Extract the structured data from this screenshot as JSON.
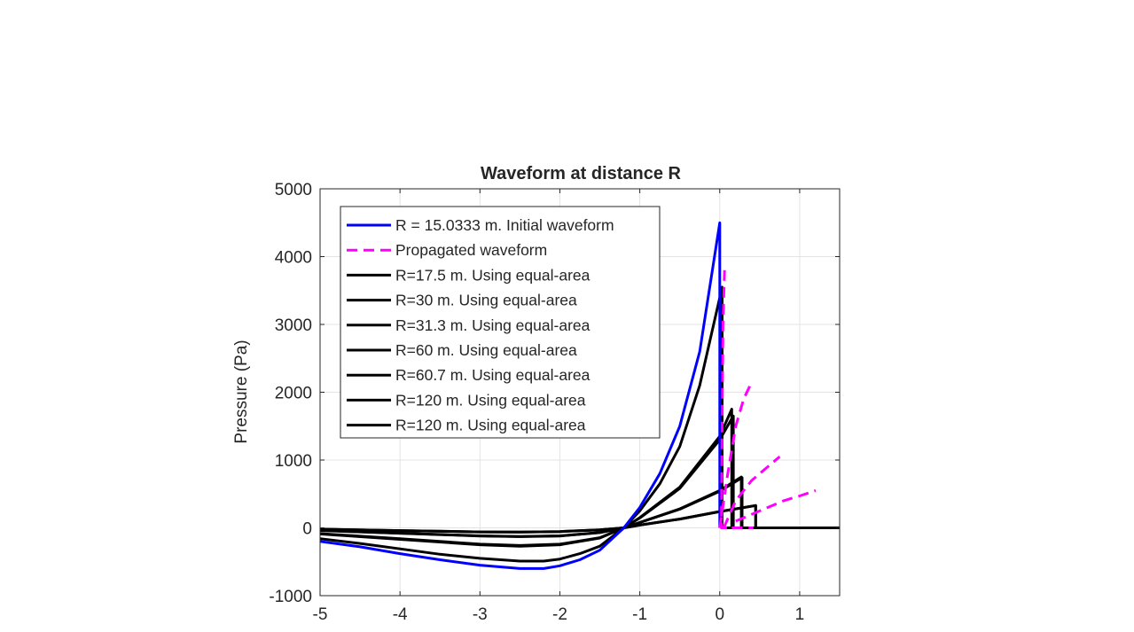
{
  "chart_data": {
    "type": "line",
    "title": "Waveform at distance R",
    "xlabel": "",
    "ylabel": "Pressure (Pa)",
    "xlim": [
      -5,
      1.5
    ],
    "ylim": [
      -1000,
      5000
    ],
    "xticks": [
      "-5",
      "-4",
      "-3",
      "-2",
      "-1",
      "0",
      "1"
    ],
    "xtick_values": [
      -5,
      -4,
      -3,
      -2,
      -1,
      0,
      1
    ],
    "yticks": [
      "-1000",
      "0",
      "1000",
      "2000",
      "3000",
      "4000",
      "5000"
    ],
    "ytick_values": [
      -1000,
      0,
      1000,
      2000,
      3000,
      4000,
      5000
    ],
    "grid": true,
    "legend_position": "top-left",
    "series": [
      {
        "name": "R = 15.0333 m. Initial waveform",
        "color": "#0000ff",
        "dash": false,
        "points": [
          [
            -5,
            -200
          ],
          [
            -4.5,
            -280
          ],
          [
            -4,
            -380
          ],
          [
            -3.5,
            -470
          ],
          [
            -3,
            -550
          ],
          [
            -2.5,
            -600
          ],
          [
            -2.2,
            -600
          ],
          [
            -2,
            -560
          ],
          [
            -1.75,
            -470
          ],
          [
            -1.5,
            -330
          ],
          [
            -1.2,
            0
          ],
          [
            -1,
            300
          ],
          [
            -0.75,
            800
          ],
          [
            -0.5,
            1500
          ],
          [
            -0.25,
            2600
          ],
          [
            0,
            4500
          ],
          [
            0,
            0
          ]
        ]
      },
      {
        "name": "Propagated waveform",
        "color": "#ff00ff",
        "dash": true,
        "segments": [
          [
            [
              0.06,
              3800
            ],
            [
              0.04,
              3000
            ],
            [
              0.03,
              1500
            ],
            [
              0.02,
              0
            ],
            [
              0.1,
              0
            ]
          ],
          [
            [
              0.0,
              0
            ],
            [
              0.1,
              800
            ],
            [
              0.2,
              1500
            ],
            [
              0.3,
              1900
            ],
            [
              0.4,
              2150
            ]
          ],
          [
            [
              0.05,
              0
            ],
            [
              0.2,
              400
            ],
            [
              0.4,
              700
            ],
            [
              0.6,
              900
            ],
            [
              0.75,
              1050
            ]
          ],
          [
            [
              0.15,
              0
            ],
            [
              0.42,
              0
            ]
          ],
          [
            [
              0.2,
              100
            ],
            [
              0.5,
              250
            ],
            [
              0.8,
              400
            ],
            [
              1.0,
              470
            ],
            [
              1.2,
              550
            ]
          ]
        ]
      },
      {
        "name": "R=17.5 m. Using equal-area",
        "color": "#000000",
        "dash": false,
        "points": [
          [
            -5,
            -160
          ],
          [
            -4.5,
            -230
          ],
          [
            -4,
            -310
          ],
          [
            -3.5,
            -390
          ],
          [
            -3,
            -450
          ],
          [
            -2.5,
            -490
          ],
          [
            -2.2,
            -490
          ],
          [
            -2,
            -460
          ],
          [
            -1.75,
            -380
          ],
          [
            -1.5,
            -270
          ],
          [
            -1.2,
            0
          ],
          [
            -1,
            250
          ],
          [
            -0.75,
            650
          ],
          [
            -0.5,
            1200
          ],
          [
            -0.25,
            2100
          ],
          [
            0.03,
            3550
          ],
          [
            0.03,
            0
          ],
          [
            1.5,
            0
          ]
        ]
      },
      {
        "name": "R=30 m. Using equal-area",
        "color": "#000000",
        "dash": false,
        "points": [
          [
            -5,
            -90
          ],
          [
            -4,
            -170
          ],
          [
            -3,
            -250
          ],
          [
            -2.5,
            -270
          ],
          [
            -2,
            -250
          ],
          [
            -1.5,
            -150
          ],
          [
            -1.2,
            0
          ],
          [
            -1,
            150
          ],
          [
            -0.5,
            600
          ],
          [
            0,
            1350
          ],
          [
            0.15,
            1750
          ],
          [
            0.15,
            0
          ],
          [
            1.5,
            0
          ]
        ]
      },
      {
        "name": "R=31.3 m. Using equal-area",
        "color": "#000000",
        "dash": false,
        "points": [
          [
            -5,
            -85
          ],
          [
            -4,
            -160
          ],
          [
            -3,
            -240
          ],
          [
            -2.5,
            -260
          ],
          [
            -2,
            -240
          ],
          [
            -1.5,
            -145
          ],
          [
            -1.2,
            0
          ],
          [
            -1,
            145
          ],
          [
            -0.5,
            580
          ],
          [
            0,
            1300
          ],
          [
            0.17,
            1650
          ],
          [
            0.17,
            0
          ],
          [
            1.5,
            0
          ]
        ]
      },
      {
        "name": "R=60 m. Using equal-area",
        "color": "#000000",
        "dash": false,
        "points": [
          [
            -5,
            -40
          ],
          [
            -4,
            -80
          ],
          [
            -3,
            -120
          ],
          [
            -2.5,
            -130
          ],
          [
            -2,
            -120
          ],
          [
            -1.5,
            -70
          ],
          [
            -1.2,
            0
          ],
          [
            -1,
            80
          ],
          [
            -0.5,
            280
          ],
          [
            0,
            550
          ],
          [
            0.27,
            750
          ],
          [
            0.27,
            0
          ],
          [
            1.5,
            0
          ]
        ]
      },
      {
        "name": "R=60.7 m. Using equal-area",
        "color": "#000000",
        "dash": false,
        "points": [
          [
            -5,
            -38
          ],
          [
            -4,
            -78
          ],
          [
            -3,
            -118
          ],
          [
            -2.5,
            -128
          ],
          [
            -2,
            -118
          ],
          [
            -1.5,
            -68
          ],
          [
            -1.2,
            0
          ],
          [
            -1,
            78
          ],
          [
            -0.5,
            275
          ],
          [
            0,
            540
          ],
          [
            0.28,
            740
          ],
          [
            0.28,
            0
          ],
          [
            1.5,
            0
          ]
        ]
      },
      {
        "name": "R=120 m. Using equal-area",
        "color": "#000000",
        "dash": false,
        "points": [
          [
            -5,
            -20
          ],
          [
            -4,
            -40
          ],
          [
            -3,
            -60
          ],
          [
            -2.5,
            -63
          ],
          [
            -2,
            -55
          ],
          [
            -1.5,
            -30
          ],
          [
            -1.2,
            0
          ],
          [
            -1,
            40
          ],
          [
            -0.5,
            130
          ],
          [
            0,
            240
          ],
          [
            0.45,
            330
          ],
          [
            0.45,
            0
          ],
          [
            1.5,
            0
          ]
        ]
      },
      {
        "name": "R=120 m. Using equal-area",
        "color": "#000000",
        "dash": false,
        "points": [
          [
            -5,
            -20
          ],
          [
            -4,
            -40
          ],
          [
            -3,
            -60
          ],
          [
            -2.5,
            -63
          ],
          [
            -2,
            -55
          ],
          [
            -1.5,
            -30
          ],
          [
            -1.2,
            0
          ],
          [
            -1,
            40
          ],
          [
            -0.5,
            130
          ],
          [
            0,
            240
          ],
          [
            0.45,
            330
          ],
          [
            0.45,
            0
          ],
          [
            1.5,
            0
          ]
        ]
      }
    ]
  }
}
